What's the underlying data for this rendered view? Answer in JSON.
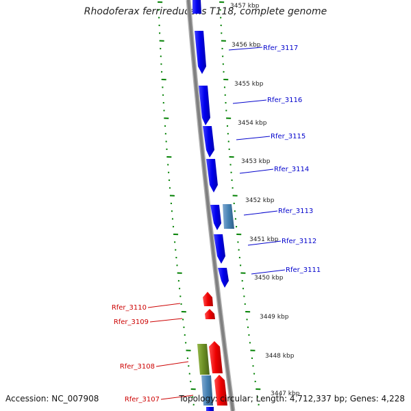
{
  "title": "Rhodoferax ferrireducens T118, complete genome",
  "footer": {
    "accession_label": "Accession:",
    "accession": "NC_007908",
    "topology_label": "Topology:",
    "topology": "circular",
    "length_label": "Length:",
    "length": "4,712,337 bp",
    "genes_label": "Genes:",
    "genes": "4,228"
  },
  "colors": {
    "forward_gene": "#0000ee",
    "forward_gene_alt": "#4682b4",
    "reverse_gene": "#ee0000",
    "reverse_gene_alt": "#6b8e23",
    "backbone": "#808080",
    "tick": "#008000",
    "kbp_label": "#222222"
  },
  "kbp_ticks": [
    "3457 kbp",
    "3456 kbp",
    "3455 kbp",
    "3454 kbp",
    "3453 kbp",
    "3452 kbp",
    "3451 kbp",
    "3450 kbp",
    "3449 kbp",
    "3448 kbp",
    "3447 kbp"
  ],
  "forward_labels": [
    "Rfer_3117",
    "Rfer_3116",
    "Rfer_3115",
    "Rfer_3114",
    "Rfer_3113",
    "Rfer_3112",
    "Rfer_3111"
  ],
  "reverse_labels": [
    "Rfer_3110",
    "Rfer_3109",
    "Rfer_3108",
    "Rfer_3107"
  ]
}
